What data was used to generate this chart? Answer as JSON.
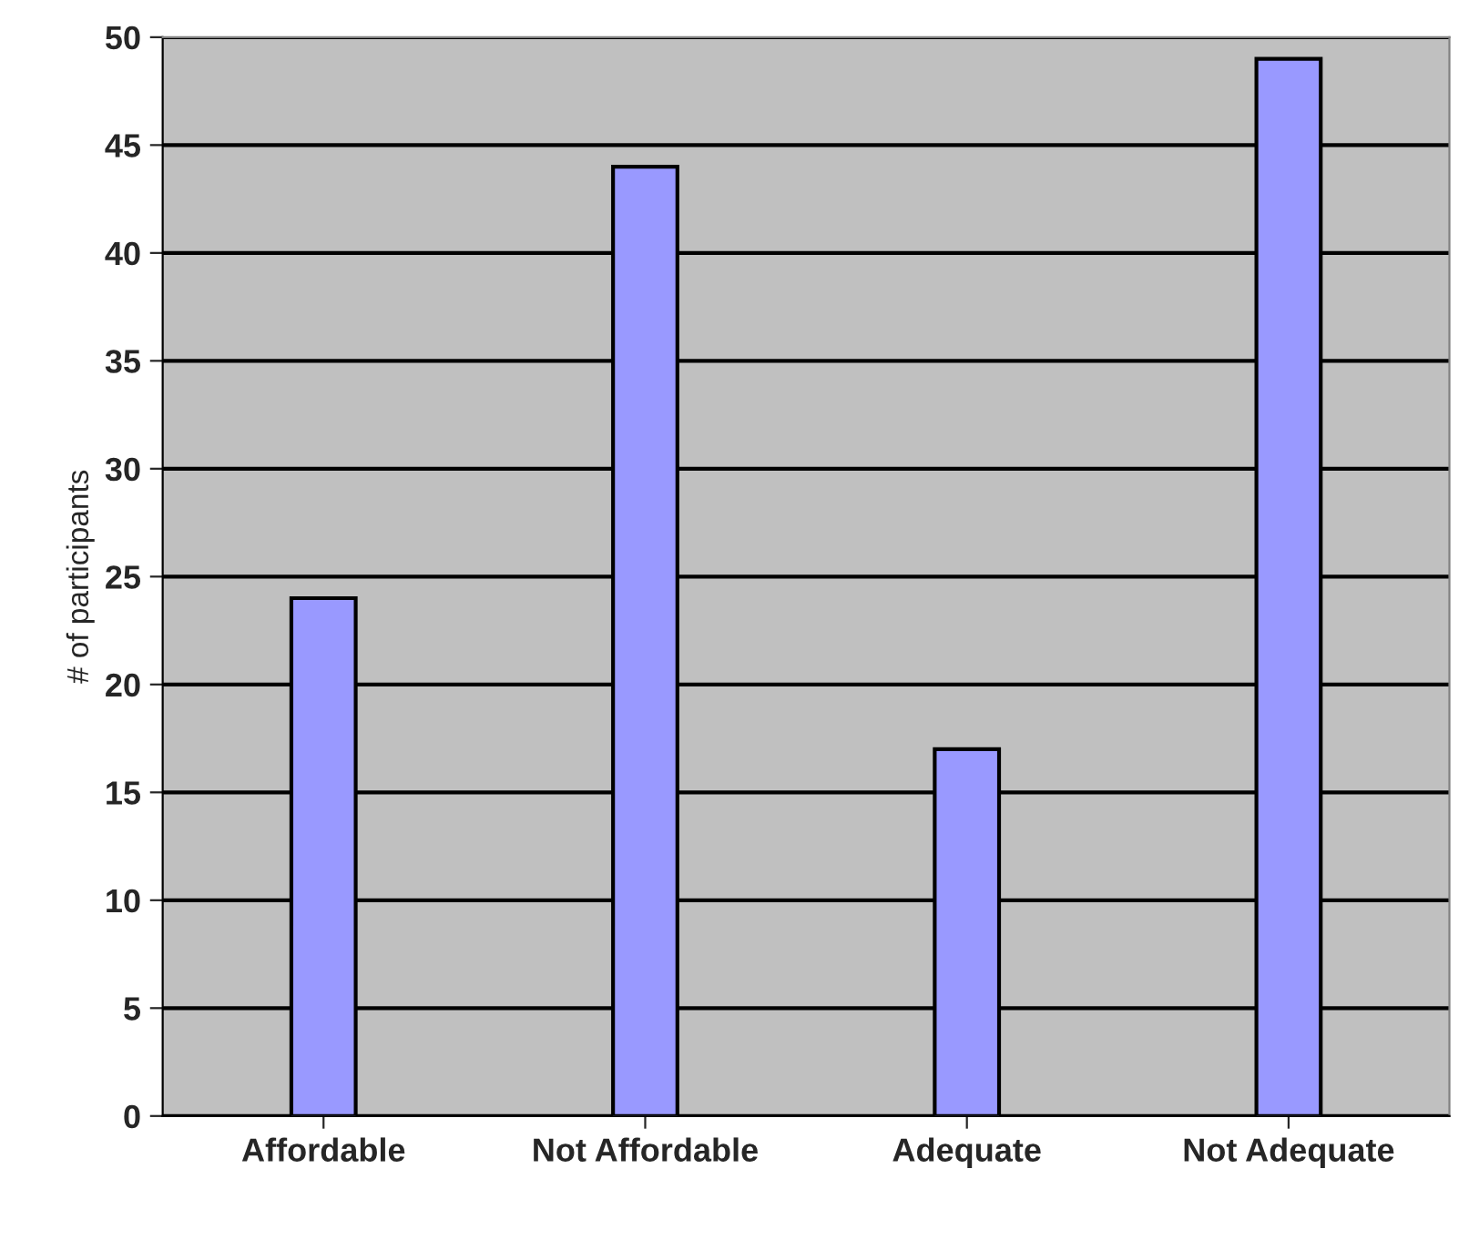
{
  "chart_data": {
    "type": "bar",
    "ylabel": "# of participants",
    "categories": [
      "Affordable",
      "Not Affordable",
      "Adequate",
      "Not Adequate"
    ],
    "values": [
      24,
      44,
      17,
      49
    ],
    "color": "#9999ff",
    "ylim": [
      0,
      50
    ],
    "yticks": [
      0,
      5,
      10,
      15,
      20,
      25,
      30,
      35,
      40,
      45,
      50
    ],
    "grid": "y"
  }
}
